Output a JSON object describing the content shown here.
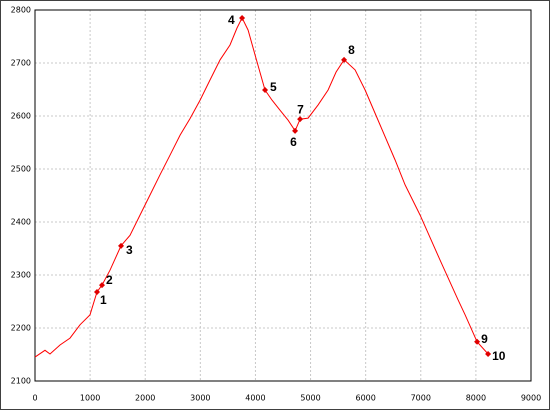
{
  "chart_data": {
    "type": "line",
    "series": [
      {
        "color": "#ff0000",
        "x": [
          0,
          181,
          272,
          454,
          635,
          817,
          998,
          1125,
          1216,
          1361,
          1561,
          1724,
          1906,
          2087,
          2269,
          2450,
          2632,
          2813,
          2995,
          3176,
          3358,
          3539,
          3666,
          3757,
          3866,
          3993,
          4174,
          4301,
          4446,
          4592,
          4719,
          4810,
          4955,
          5136,
          5318,
          5463,
          5608,
          5808,
          5989,
          6261,
          6534,
          6715,
          6987,
          7350,
          7677,
          7804,
          8022,
          8221
        ],
        "values": [
          2145,
          2158,
          2151,
          2168,
          2181,
          2206,
          2225,
          2268,
          2281,
          2309,
          2355,
          2375,
          2413,
          2451,
          2489,
          2526,
          2564,
          2595,
          2630,
          2668,
          2706,
          2734,
          2766,
          2785,
          2762,
          2715,
          2649,
          2630,
          2611,
          2592,
          2572,
          2594,
          2596,
          2621,
          2649,
          2683,
          2706,
          2687,
          2649,
          2583,
          2517,
          2470,
          2413,
          2328,
          2253,
          2225,
          2174,
          2151
        ]
      },
      {
        "color": "#e00000",
        "labels": [
          "1",
          "2",
          "3",
          "4",
          "5",
          "6",
          "7",
          "8",
          "9",
          "10"
        ],
        "x": [
          1125,
          1216,
          1561,
          3757,
          4174,
          4719,
          4810,
          5608,
          8022,
          8221
        ],
        "values": [
          2268,
          2281,
          2355,
          2785,
          2649,
          2572,
          2594,
          2706,
          2174,
          2151
        ]
      }
    ],
    "xlim": [
      0,
      9000
    ],
    "xticks": [
      0,
      1000,
      2000,
      3000,
      4000,
      5000,
      6000,
      7000,
      8000,
      9000
    ],
    "ylim": [
      2100,
      2800
    ],
    "yticks": [
      2100,
      2200,
      2300,
      2400,
      2500,
      2600,
      2700,
      2800
    ],
    "grid": true
  }
}
